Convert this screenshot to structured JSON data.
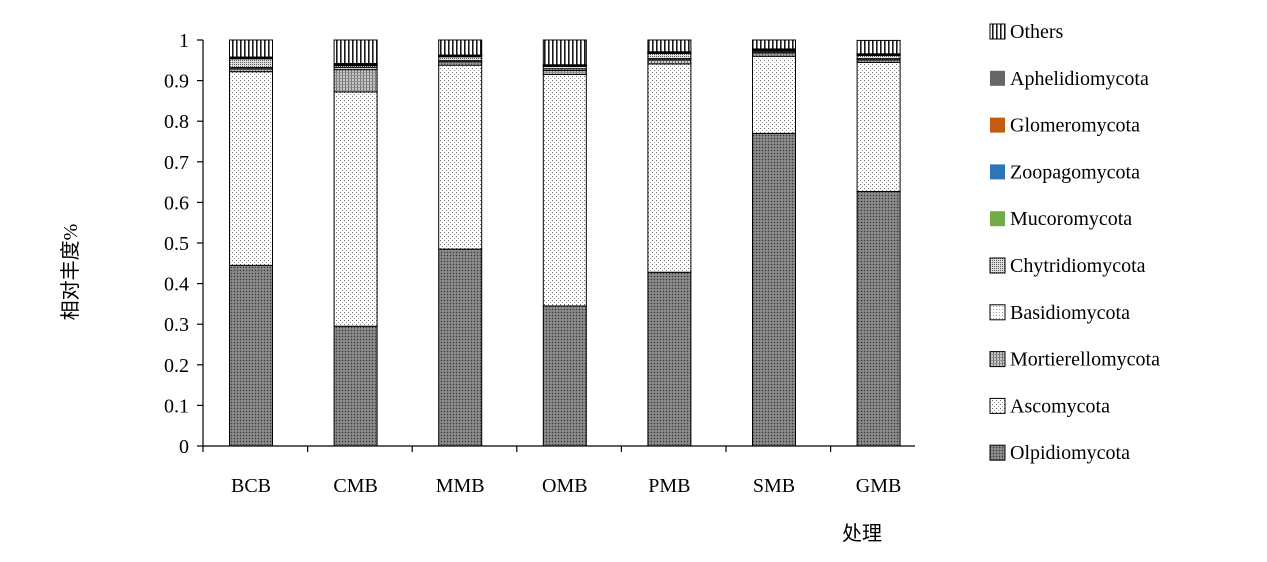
{
  "chart_data": {
    "type": "bar",
    "stacked": true,
    "title": "",
    "xlabel": "处理",
    "ylabel": "相对丰度%",
    "ylim": [
      0,
      1
    ],
    "yticks": [
      "0",
      "0.1",
      "0.2",
      "0.3",
      "0.4",
      "0.5",
      "0.6",
      "0.7",
      "0.8",
      "0.9",
      "1"
    ],
    "categories": [
      "BCB",
      "CMB",
      "MMB",
      "OMB",
      "PMB",
      "SMB",
      "GMB"
    ],
    "grid": false,
    "legend_position": "right",
    "series": [
      {
        "name": "Olpidiomycota",
        "color": "#808080",
        "pattern": "dense-dots",
        "values": [
          0.445,
          0.295,
          0.485,
          0.345,
          0.428,
          0.77,
          0.627
        ]
      },
      {
        "name": "Ascomycota",
        "color": "#ffffff",
        "pattern": "sparse-dots",
        "values": [
          0.477,
          0.577,
          0.453,
          0.57,
          0.513,
          0.19,
          0.318
        ]
      },
      {
        "name": "Mortierellomycota",
        "color": "#bfbfbf",
        "pattern": "light-grid",
        "values": [
          0.007,
          0.055,
          0.008,
          0.01,
          0.01,
          0.008,
          0.006
        ]
      },
      {
        "name": "Basidiomycota",
        "color": "#ffffff",
        "pattern": "light-dots",
        "values": [
          0.003,
          0.005,
          0.003,
          0.004,
          0.003,
          0.003,
          0.003
        ]
      },
      {
        "name": "Chytridiomycota",
        "color": "#d0d0d0",
        "pattern": "fine-dots",
        "values": [
          0.022,
          0.005,
          0.01,
          0.006,
          0.013,
          0.003,
          0.008
        ]
      },
      {
        "name": "Mucoromycota",
        "color": "#70ad47",
        "pattern": "solid",
        "values": [
          0.001,
          0.001,
          0.001,
          0.001,
          0.001,
          0.001,
          0.001
        ]
      },
      {
        "name": "Zoopagomycota",
        "color": "#2e75b6",
        "pattern": "solid",
        "values": [
          0.001,
          0.002,
          0.001,
          0.001,
          0.001,
          0.001,
          0.001
        ]
      },
      {
        "name": "Glomeromycota",
        "color": "#c55a11",
        "pattern": "solid",
        "values": [
          0.001,
          0.001,
          0.001,
          0.001,
          0.001,
          0.001,
          0.001
        ]
      },
      {
        "name": "Aphelidiomycota",
        "color": "#666666",
        "pattern": "solid",
        "values": [
          0.001,
          0.001,
          0.001,
          0.001,
          0.001,
          0.001,
          0.001
        ]
      },
      {
        "name": "Others",
        "color": "#ffffff",
        "pattern": "vertical-lines",
        "values": [
          0.042,
          0.058,
          0.037,
          0.061,
          0.029,
          0.022,
          0.033
        ]
      }
    ],
    "legend_order": [
      "Others",
      "Aphelidiomycota",
      "Glomeromycota",
      "Zoopagomycota",
      "Mucoromycota",
      "Chytridiomycota",
      "Basidiomycota",
      "Mortierellomycota",
      "Ascomycota",
      "Olpidiomycota"
    ]
  }
}
